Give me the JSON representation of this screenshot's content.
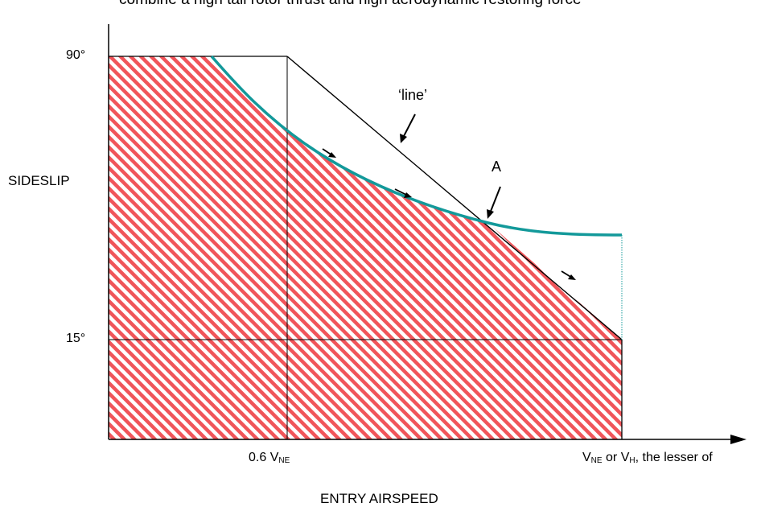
{
  "caption": "combine a high tail rotor thrust and high aerodynamic restoring force",
  "y_axis": {
    "title": "SIDESLIP",
    "tick_90": "90°",
    "tick_15": "15°"
  },
  "x_axis": {
    "title": "ENTRY AIRSPEED",
    "tick_06_prefix": "0.6 V",
    "tick_06_sub": "NE",
    "tick_vne_v1": "V",
    "tick_vne_sub1": "NE",
    "tick_vne_mid": " or V",
    "tick_vne_sub2": "H",
    "tick_vne_rest": ", the lesser of"
  },
  "annotations": {
    "line_label": "‘line’",
    "point_label": "A"
  },
  "colors": {
    "hatch": "#f0555a",
    "curve": "#13999a",
    "axes": "#000000",
    "grid": "#000000"
  }
}
